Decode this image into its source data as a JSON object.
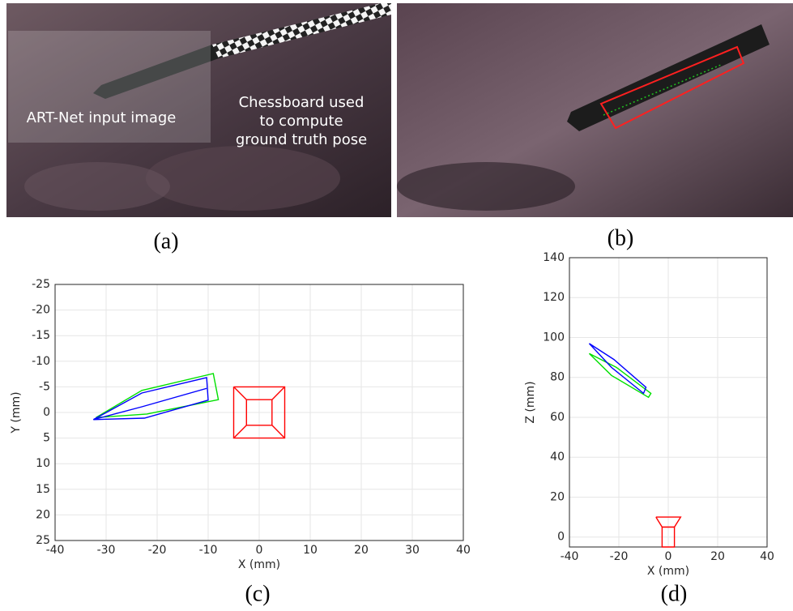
{
  "panels": {
    "a": {
      "labels": [
        "ART-Net input image",
        "Chessboard used",
        "to compute",
        "ground truth pose"
      ]
    }
  },
  "captions": [
    "(a)",
    "(b)",
    "(c)",
    "(d)"
  ],
  "chart_data": [
    {
      "type": "line",
      "xlabel": "X (mm)",
      "ylabel": "Y (mm)",
      "xlim": [
        -40,
        40
      ],
      "xticks": [
        -40,
        -30,
        -20,
        -10,
        0,
        10,
        20,
        30,
        40
      ],
      "ylim": [
        -25,
        25
      ],
      "yticks": [
        -25,
        -20,
        -15,
        -10,
        -5,
        0,
        5,
        10,
        15,
        20,
        25
      ],
      "y_direction": "reverse",
      "grid": true,
      "series": [
        {
          "color": "#00e000",
          "x": [
            -32,
            -23,
            -9,
            -8,
            -22,
            -32
          ],
          "values": [
            1.0,
            -4.3,
            -7.6,
            -2.5,
            0.3,
            1.0
          ]
        },
        {
          "color": "#0000ff",
          "x": [
            -32.5,
            -23,
            -10.3,
            -10,
            -22.5,
            -32.5
          ],
          "values": [
            1.4,
            -3.8,
            -6.8,
            -2.4,
            1.1,
            1.4
          ]
        },
        {
          "color": "#0000ff",
          "x": [
            -32.5,
            -23,
            -10.3
          ],
          "values": [
            1.4,
            -1.1,
            -4.7
          ]
        },
        {
          "color": "#ff0000",
          "x": [
            -5,
            5,
            5,
            -5,
            -5
          ],
          "values": [
            -5,
            -5,
            5,
            5,
            -5
          ]
        },
        {
          "color": "#ff0000",
          "x": [
            -2.5,
            2.5,
            2.5,
            -2.5,
            -2.5
          ],
          "values": [
            -2.5,
            -2.5,
            2.5,
            2.5,
            -2.5
          ]
        },
        {
          "color": "#ff0000",
          "x": [
            -5,
            -2.5,
            null,
            5,
            2.5,
            null,
            5,
            2.5,
            null,
            -5,
            -2.5
          ],
          "values": [
            -5,
            -2.5,
            null,
            -5,
            -2.5,
            null,
            5,
            2.5,
            null,
            5,
            2.5
          ]
        }
      ]
    },
    {
      "type": "line",
      "xlabel": "X (mm)",
      "ylabel": "Z (mm)",
      "xlim": [
        -40,
        40
      ],
      "xticks": [
        -40,
        -20,
        0,
        20,
        40
      ],
      "ylim": [
        -5,
        140
      ],
      "yticks": [
        0,
        20,
        40,
        60,
        80,
        100,
        120,
        140
      ],
      "grid": true,
      "series": [
        {
          "color": "#00e000",
          "x": [
            -32,
            -21,
            -7,
            -8,
            -23,
            -32
          ],
          "values": [
            92,
            85,
            72,
            70,
            81,
            92
          ]
        },
        {
          "color": "#0000ff",
          "x": [
            -32,
            -22,
            -9,
            -10,
            -23,
            -32
          ],
          "values": [
            97,
            89,
            75,
            72,
            85,
            97
          ]
        },
        {
          "color": "#ff0000",
          "x": [
            -5,
            5,
            2.5,
            -2.5,
            -5
          ],
          "values": [
            10,
            10,
            5,
            5,
            10
          ]
        },
        {
          "color": "#ff0000",
          "x": [
            -2.5,
            2.5,
            2.5,
            -2.5,
            -2.5
          ],
          "values": [
            5,
            5,
            -5,
            -5,
            5
          ]
        }
      ]
    }
  ]
}
